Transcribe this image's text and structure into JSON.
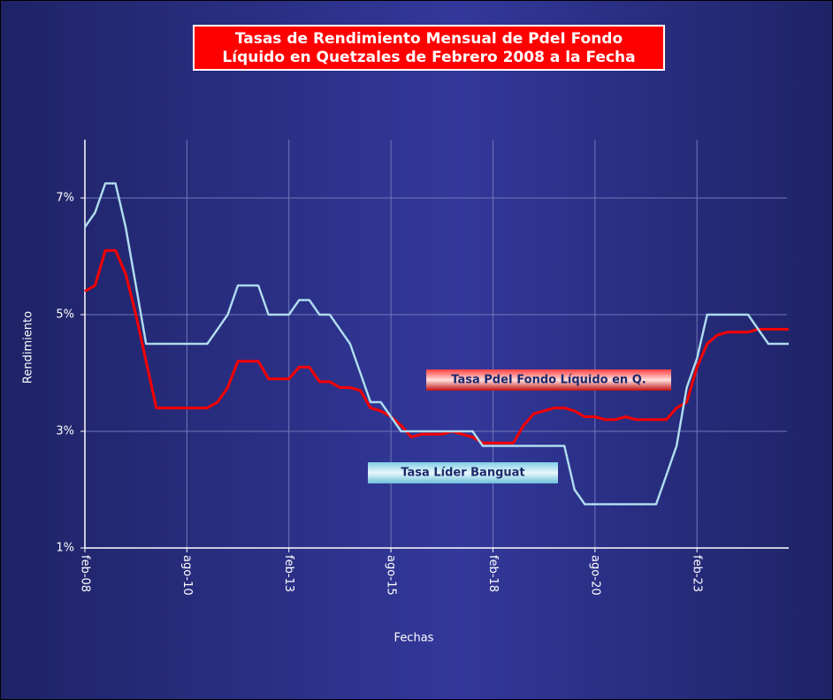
{
  "chart_data": {
    "type": "line",
    "title": [
      "Tasas de Rendimiento Mensual de PdeI Fondo",
      "Líquido en Quetzales de Febrero 2008 a la Fecha"
    ],
    "x_label": "Fechas",
    "y_label": "Rendimiento",
    "x": [
      "2008-02",
      "2008-05",
      "2008-08",
      "2008-11",
      "2009-02",
      "2009-05",
      "2009-08",
      "2009-11",
      "2010-02",
      "2010-05",
      "2010-08",
      "2010-11",
      "2011-02",
      "2011-05",
      "2011-08",
      "2011-11",
      "2012-02",
      "2012-05",
      "2012-08",
      "2012-11",
      "2013-02",
      "2013-05",
      "2013-08",
      "2013-11",
      "2014-02",
      "2014-05",
      "2014-08",
      "2014-11",
      "2015-02",
      "2015-05",
      "2015-08",
      "2015-11",
      "2016-02",
      "2016-05",
      "2016-08",
      "2016-11",
      "2017-02",
      "2017-05",
      "2017-08",
      "2017-11",
      "2018-02",
      "2018-05",
      "2018-08",
      "2018-11",
      "2019-02",
      "2019-05",
      "2019-08",
      "2019-11",
      "2020-02",
      "2020-05",
      "2020-08",
      "2020-11",
      "2021-02",
      "2021-05",
      "2021-08",
      "2021-11",
      "2022-02",
      "2022-05",
      "2022-08",
      "2022-11",
      "2023-02",
      "2023-05",
      "2023-08",
      "2023-11",
      "2024-02",
      "2024-05",
      "2024-08",
      "2024-11",
      "2025-02",
      "2025-05"
    ],
    "series": [
      {
        "name": "Tasa PdeI Fondo Líquido en Q.",
        "color": "#ff0000",
        "values": [
          5.4,
          5.5,
          6.1,
          6.1,
          5.7,
          5.0,
          4.2,
          3.4,
          3.4,
          3.4,
          3.4,
          3.4,
          3.4,
          3.5,
          3.75,
          4.2,
          4.2,
          4.2,
          3.9,
          3.9,
          3.9,
          4.1,
          4.1,
          3.85,
          3.85,
          3.75,
          3.75,
          3.7,
          3.4,
          3.35,
          3.25,
          3.1,
          2.9,
          2.95,
          2.95,
          2.95,
          3.0,
          2.95,
          2.9,
          2.8,
          2.8,
          2.8,
          2.8,
          3.1,
          3.3,
          3.35,
          3.4,
          3.4,
          3.35,
          3.25,
          3.25,
          3.2,
          3.2,
          3.25,
          3.2,
          3.2,
          3.2,
          3.2,
          3.4,
          3.5,
          4.1,
          4.5,
          4.65,
          4.7,
          4.7,
          4.7,
          4.75,
          4.75,
          4.75,
          4.75
        ]
      },
      {
        "name": "Tasa Líder Banguat",
        "color": "#9fd3ea",
        "values": [
          6.5,
          6.75,
          7.25,
          7.25,
          6.5,
          5.5,
          4.5,
          4.5,
          4.5,
          4.5,
          4.5,
          4.5,
          4.5,
          4.75,
          5.0,
          5.5,
          5.5,
          5.5,
          5.0,
          5.0,
          5.0,
          5.25,
          5.25,
          5.0,
          5.0,
          4.75,
          4.5,
          4.0,
          3.5,
          3.5,
          3.25,
          3.0,
          3.0,
          3.0,
          3.0,
          3.0,
          3.0,
          3.0,
          3.0,
          2.75,
          2.75,
          2.75,
          2.75,
          2.75,
          2.75,
          2.75,
          2.75,
          2.75,
          2.0,
          1.75,
          1.75,
          1.75,
          1.75,
          1.75,
          1.75,
          1.75,
          1.75,
          2.25,
          2.75,
          3.75,
          4.25,
          5.0,
          5.0,
          5.0,
          5.0,
          5.0,
          4.75,
          4.5,
          4.5,
          4.5
        ]
      }
    ],
    "xlim": [
      "2008-02",
      "2025-05"
    ],
    "xticks": [
      {
        "value": "2008-02",
        "label": "feb-08"
      },
      {
        "value": "2010-08",
        "label": "ago-10"
      },
      {
        "value": "2013-02",
        "label": "feb-13"
      },
      {
        "value": "2015-08",
        "label": "ago-15"
      },
      {
        "value": "2018-02",
        "label": "feb-18"
      },
      {
        "value": "2020-08",
        "label": "ago-20"
      },
      {
        "value": "2023-02",
        "label": "feb-23"
      }
    ],
    "ylim": [
      1,
      8
    ],
    "yticks": [
      {
        "value": 1,
        "label": "1%"
      },
      {
        "value": 3,
        "label": "3%"
      },
      {
        "value": 5,
        "label": "5%"
      },
      {
        "value": 7,
        "label": "7%"
      }
    ],
    "grid": true
  }
}
